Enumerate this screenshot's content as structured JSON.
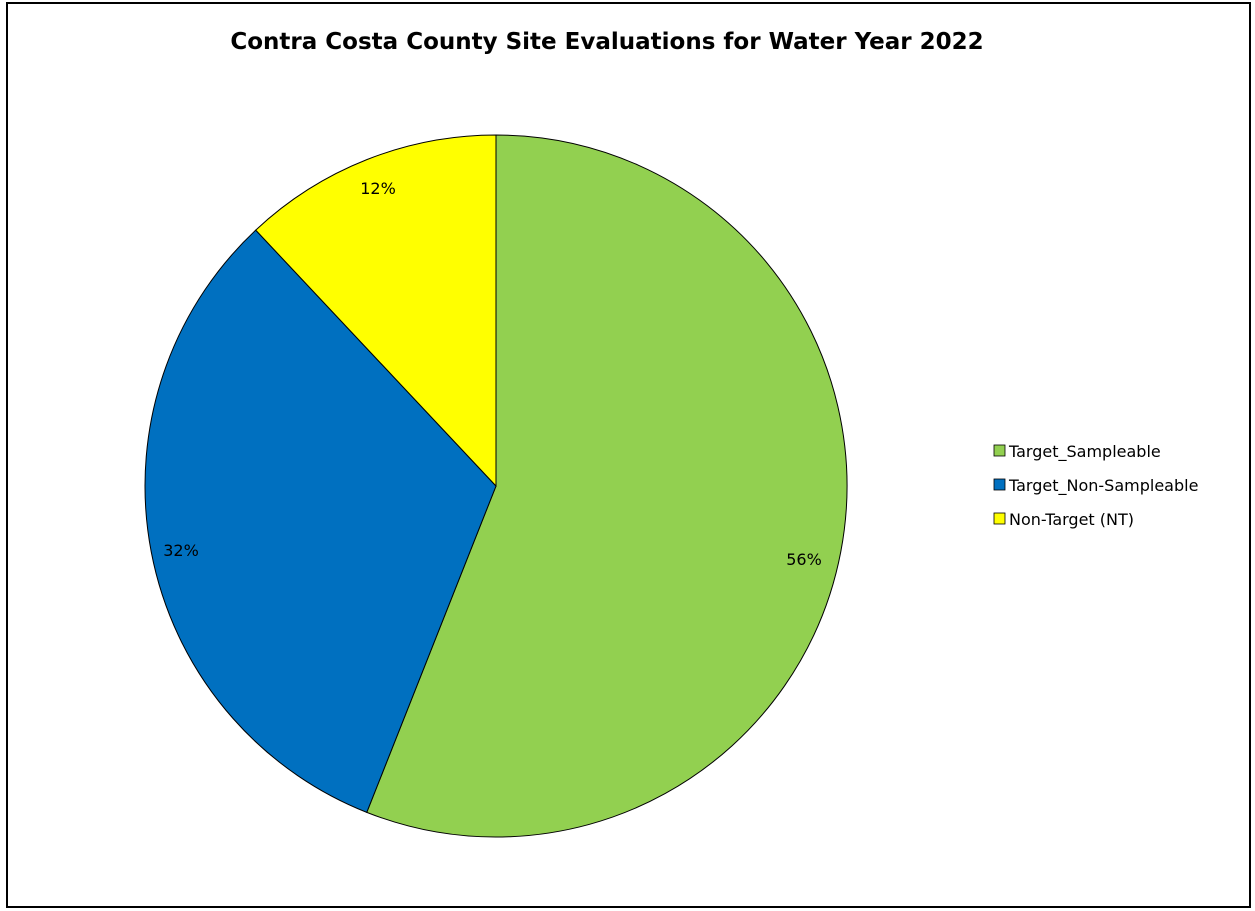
{
  "chart_data": {
    "type": "pie",
    "title": "Contra Costa County Site Evaluations for Water Year 2022",
    "categories": [
      "Target_Sampleable",
      "Target_Non-Sampleable",
      "Non-Target (NT)"
    ],
    "values": [
      56,
      32,
      12
    ],
    "data_labels": [
      "56%",
      "32%",
      "12%"
    ],
    "colors": [
      "#92D050",
      "#0070C0",
      "#FFFF00"
    ],
    "legend_position": "right",
    "slice_order": "clockwise from 12 o'clock"
  }
}
